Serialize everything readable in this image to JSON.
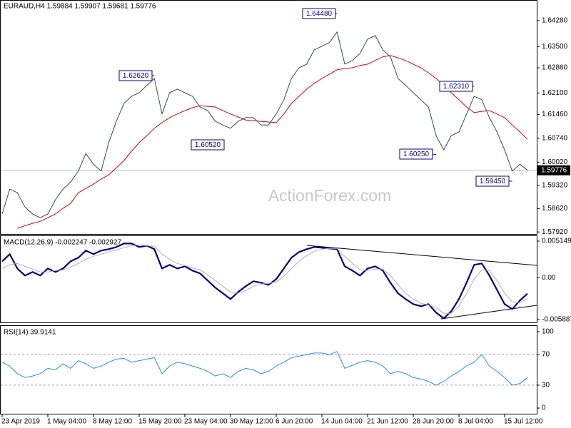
{
  "chart_data": [
    {
      "type": "line",
      "title": "EURAUD,H4  1.59884 1.59907 1.59681 1.59776",
      "watermark": "ActionForex.com",
      "ylim": [
        1.5786,
        1.649
      ],
      "yticks": [
        {
          "value": 1.6428,
          "label": "1.64280"
        },
        {
          "value": 1.635,
          "label": "1.63500"
        },
        {
          "value": 1.6286,
          "label": "1.62860"
        },
        {
          "value": 1.621,
          "label": "1.62100"
        },
        {
          "value": 1.6146,
          "label": "1.61460"
        },
        {
          "value": 1.6074,
          "label": "1.60740"
        },
        {
          "value": 1.6002,
          "label": "1.60020"
        },
        {
          "value": 1.5932,
          "label": "1.59320"
        },
        {
          "value": 1.5862,
          "label": "1.58620"
        },
        {
          "value": 1.5792,
          "label": "1.57920"
        }
      ],
      "last_price": 1.59776,
      "annotations": [
        {
          "value": 1.6262,
          "label": "1.62620"
        },
        {
          "value": 1.6052,
          "label": "1.60520"
        },
        {
          "value": 1.6448,
          "label": "1.64480"
        },
        {
          "value": 1.6025,
          "label": "1.60250"
        },
        {
          "value": 1.6231,
          "label": "1.62310"
        },
        {
          "value": 1.5945,
          "label": "1.59450"
        }
      ],
      "series": [
        {
          "color": "#2f4f4f",
          "values": [
            1.5846,
            1.5921,
            1.591,
            1.5867,
            1.5846,
            1.5835,
            1.5846,
            1.5889,
            1.5921,
            1.5942,
            1.5975,
            1.6028,
            1.5996,
            1.5975,
            1.6061,
            1.6125,
            1.6179,
            1.62,
            1.6211,
            1.6233,
            1.6254,
            1.6147,
            1.6211,
            1.6222,
            1.6211,
            1.62,
            1.6168,
            1.6157,
            1.6125,
            1.6114,
            1.6104,
            1.6125,
            1.6136,
            1.6136,
            1.6114,
            1.6114,
            1.6147,
            1.619,
            1.6254,
            1.6286,
            1.6297,
            1.634,
            1.6351,
            1.6362,
            1.6394,
            1.6297,
            1.6308,
            1.6329,
            1.6372,
            1.6383,
            1.634,
            1.6319,
            1.6254,
            1.6233,
            1.6211,
            1.619,
            1.6168,
            1.6082,
            1.6039,
            1.6082,
            1.6093,
            1.6147,
            1.62,
            1.619,
            1.6136,
            1.6093,
            1.6039,
            1.5975,
            1.5996,
            1.59776
          ]
        },
        {
          "color": "#e00000",
          "values": [
            null,
            null,
            1.5803,
            1.5811,
            1.5818,
            1.5824,
            1.5835,
            1.5846,
            1.5863,
            1.5878,
            1.591,
            1.5923,
            1.5936,
            1.5951,
            1.5964,
            1.5985,
            1.6007,
            1.6035,
            1.6061,
            1.6082,
            1.6104,
            1.6121,
            1.6136,
            1.6147,
            1.6157,
            1.6166,
            1.6172,
            1.617,
            1.6168,
            1.6157,
            1.6147,
            1.6138,
            1.6129,
            1.6127,
            1.6125,
            1.6123,
            1.6121,
            1.6147,
            1.6179,
            1.62,
            1.6222,
            1.6239,
            1.6254,
            1.6267,
            1.628,
            1.6284,
            1.6286,
            1.6293,
            1.6297,
            1.6308,
            1.6319,
            1.6323,
            1.6316,
            1.6308,
            1.6297,
            1.6286,
            1.6271,
            1.6254,
            1.6233,
            1.6211,
            1.619,
            1.6168,
            1.6151,
            1.6155,
            1.6157,
            1.6147,
            1.6136,
            1.6114,
            1.6093,
            1.6071
          ]
        }
      ]
    },
    {
      "type": "line",
      "title": "MACD(12,26,9) -0.002247 -0.002927",
      "ylim": [
        -0.00629,
        0.00585
      ],
      "yticks": [
        0.005149,
        {
          "value": 0,
          "label": "0.00"
        },
        -0.005887
      ],
      "series": [
        {
          "color": "#00008b",
          "width": 2.2,
          "values": [
            0.00231,
            0.00331,
            0.0013,
            0.0003,
            0.0008,
            0.0003,
            0.0013,
            0.0008,
            0.0013,
            0.00231,
            0.00281,
            0.00381,
            0.00331,
            0.00381,
            0.00401,
            0.00431,
            0.00481,
            0.00481,
            0.00431,
            0.00451,
            0.00401,
            0.0013,
            0.00181,
            0.0013,
            0.0016,
            0.001,
            0.0006,
            -0.0004,
            -0.0014,
            -0.00221,
            -0.00301,
            -0.00201,
            -0.0012,
            -0.0005,
            -0.0007,
            -0.001,
            -0.0002,
            0.0013,
            0.00281,
            0.00361,
            0.00401,
            0.00431,
            0.00421,
            0.00411,
            0.00401,
            0.0016,
            0.001,
            0.0003,
            0.0013,
            0.0016,
            0.001,
            -0.0007,
            -0.00221,
            -0.00301,
            -0.00371,
            -0.00401,
            -0.00371,
            -0.00491,
            -0.00572,
            -0.00471,
            -0.00301,
            -0.0007,
            0.00181,
            0.00201,
            0.0003,
            -0.00171,
            -0.00371,
            -0.00441,
            -0.00321,
            -0.002247
          ]
        },
        {
          "color": "#b0b0b0",
          "width": 1,
          "values": [
            0.0013,
            0.00181,
            0.00201,
            0.0016,
            0.0012,
            0.0008,
            0.0008,
            0.001,
            0.0011,
            0.0015,
            0.00201,
            0.00261,
            0.00301,
            0.00331,
            0.00361,
            0.00391,
            0.00421,
            0.00451,
            0.00461,
            0.00451,
            0.00441,
            0.00331,
            0.00261,
            0.00201,
            0.00171,
            0.0014,
            0.0011,
            0.0004,
            -0.0004,
            -0.0012,
            -0.00201,
            -0.00221,
            -0.00181,
            -0.0012,
            -0.0009,
            -0.0008,
            -0.0006,
            0.0002,
            0.0013,
            0.00231,
            0.00311,
            0.00371,
            0.00401,
            0.00411,
            0.00411,
            0.00301,
            0.00201,
            0.0011,
            0.001,
            0.0012,
            0.0012,
            0.0003,
            -0.001,
            -0.00221,
            -0.00301,
            -0.00361,
            -0.00381,
            -0.00421,
            -0.00502,
            -0.00502,
            -0.00401,
            -0.00221,
            -0.0002,
            0.0011,
            0.001,
            -0.0004,
            -0.00221,
            -0.00341,
            -0.00351,
            -0.002927
          ]
        }
      ]
    },
    {
      "type": "line",
      "title": "RSI(14) 39.9141",
      "ylim": [
        -7.4,
        107.4
      ],
      "yticks": [
        100,
        70,
        30,
        0
      ],
      "levels": [
        70,
        30
      ],
      "categories": [
        "23 Apr 2019",
        null,
        null,
        null,
        null,
        null,
        "1 May 04:00",
        null,
        null,
        null,
        null,
        null,
        "8 May 12:00",
        null,
        null,
        null,
        null,
        null,
        "15 May 20:00",
        null,
        null,
        null,
        null,
        null,
        "23 May 04:00",
        null,
        null,
        null,
        null,
        null,
        "30 May 12:00",
        null,
        null,
        null,
        null,
        null,
        "6 Jun 20:00",
        null,
        null,
        null,
        null,
        null,
        "14 Jun 04:00",
        null,
        null,
        null,
        null,
        null,
        "21 Jun 12:00",
        null,
        null,
        null,
        null,
        null,
        "28 Jun 20:00",
        null,
        null,
        null,
        null,
        null,
        "8 Jul 04:00",
        null,
        null,
        null,
        null,
        null,
        "15 Jul 12:00",
        null,
        null,
        null
      ],
      "series": [
        {
          "color": "#1e90ff",
          "width": 1,
          "values": [
            60,
            55,
            45,
            40,
            42,
            45,
            52,
            50,
            58,
            52,
            62,
            58,
            52,
            55,
            60,
            64,
            65,
            60,
            62,
            64,
            66,
            45,
            55,
            60,
            58,
            55,
            52,
            48,
            42,
            45,
            40,
            48,
            52,
            50,
            45,
            48,
            55,
            60,
            66,
            68,
            70,
            72,
            72,
            70,
            74,
            52,
            56,
            60,
            62,
            60,
            55,
            45,
            48,
            45,
            40,
            38,
            35,
            30,
            35,
            42,
            48,
            55,
            60,
            70,
            55,
            48,
            40,
            30,
            32,
            39.9141
          ]
        }
      ]
    }
  ]
}
